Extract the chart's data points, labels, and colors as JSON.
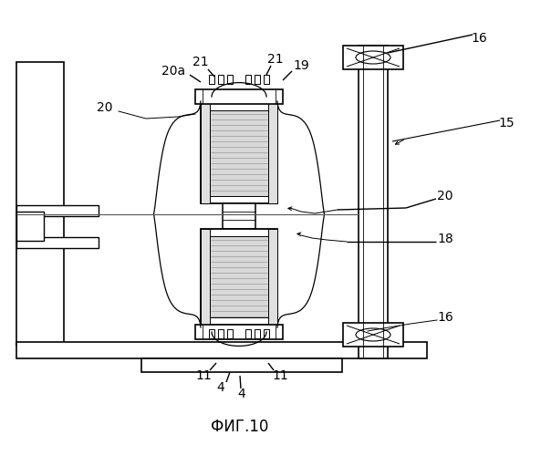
{
  "bg_color": "#ffffff",
  "line_color": "#000000",
  "fig_label": "ФИГ.10",
  "label_fontsize": 10,
  "fig_fontsize": 12
}
